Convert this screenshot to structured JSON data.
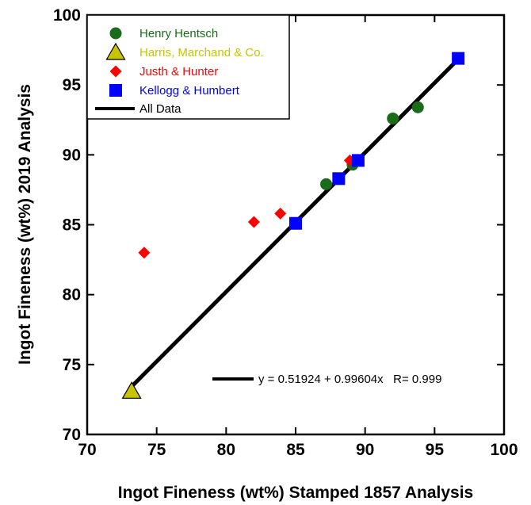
{
  "chart_data": {
    "type": "scatter",
    "title": "",
    "xlabel": "Ingot Fineness (wt%) Stamped 1857 Analysis",
    "ylabel": "Ingot Fineness (wt%) 2019 Analysis",
    "xlim": [
      70,
      100
    ],
    "ylim": [
      70,
      100
    ],
    "xticks": [
      "70",
      "75",
      "80",
      "85",
      "90",
      "95",
      "100"
    ],
    "yticks": [
      "70",
      "75",
      "80",
      "85",
      "90",
      "95",
      "100"
    ],
    "grid": false,
    "legend_position": "top-left",
    "series": [
      {
        "name": "Henry Hentsch",
        "marker": "circle",
        "color": "#1a6b1a",
        "points": [
          [
            87.2,
            87.9
          ],
          [
            89.1,
            89.3
          ],
          [
            92.0,
            92.6
          ],
          [
            93.8,
            93.4
          ]
        ]
      },
      {
        "name": "Harris, Marchand & Co.",
        "marker": "triangle",
        "color": "#c8c400",
        "points": [
          [
            73.2,
            73.1
          ]
        ]
      },
      {
        "name": "Justh & Hunter",
        "marker": "diamond",
        "color": "#ff0000",
        "points": [
          [
            74.1,
            83.0
          ],
          [
            82.0,
            85.2
          ],
          [
            83.9,
            85.8
          ],
          [
            88.9,
            89.6
          ]
        ]
      },
      {
        "name": "Kellogg & Humbert",
        "marker": "square",
        "color": "#0000ff",
        "points": [
          [
            85.0,
            85.1
          ],
          [
            88.1,
            88.3
          ],
          [
            89.5,
            89.6
          ],
          [
            96.7,
            96.9
          ]
        ]
      }
    ],
    "fit_line": {
      "name": "All Data",
      "color": "#000000",
      "intercept": 0.51924,
      "slope": 0.99604,
      "x_range": [
        73.2,
        96.7
      ],
      "label": "y = 0.51924 + 0.99604x   R= 0.999"
    }
  }
}
